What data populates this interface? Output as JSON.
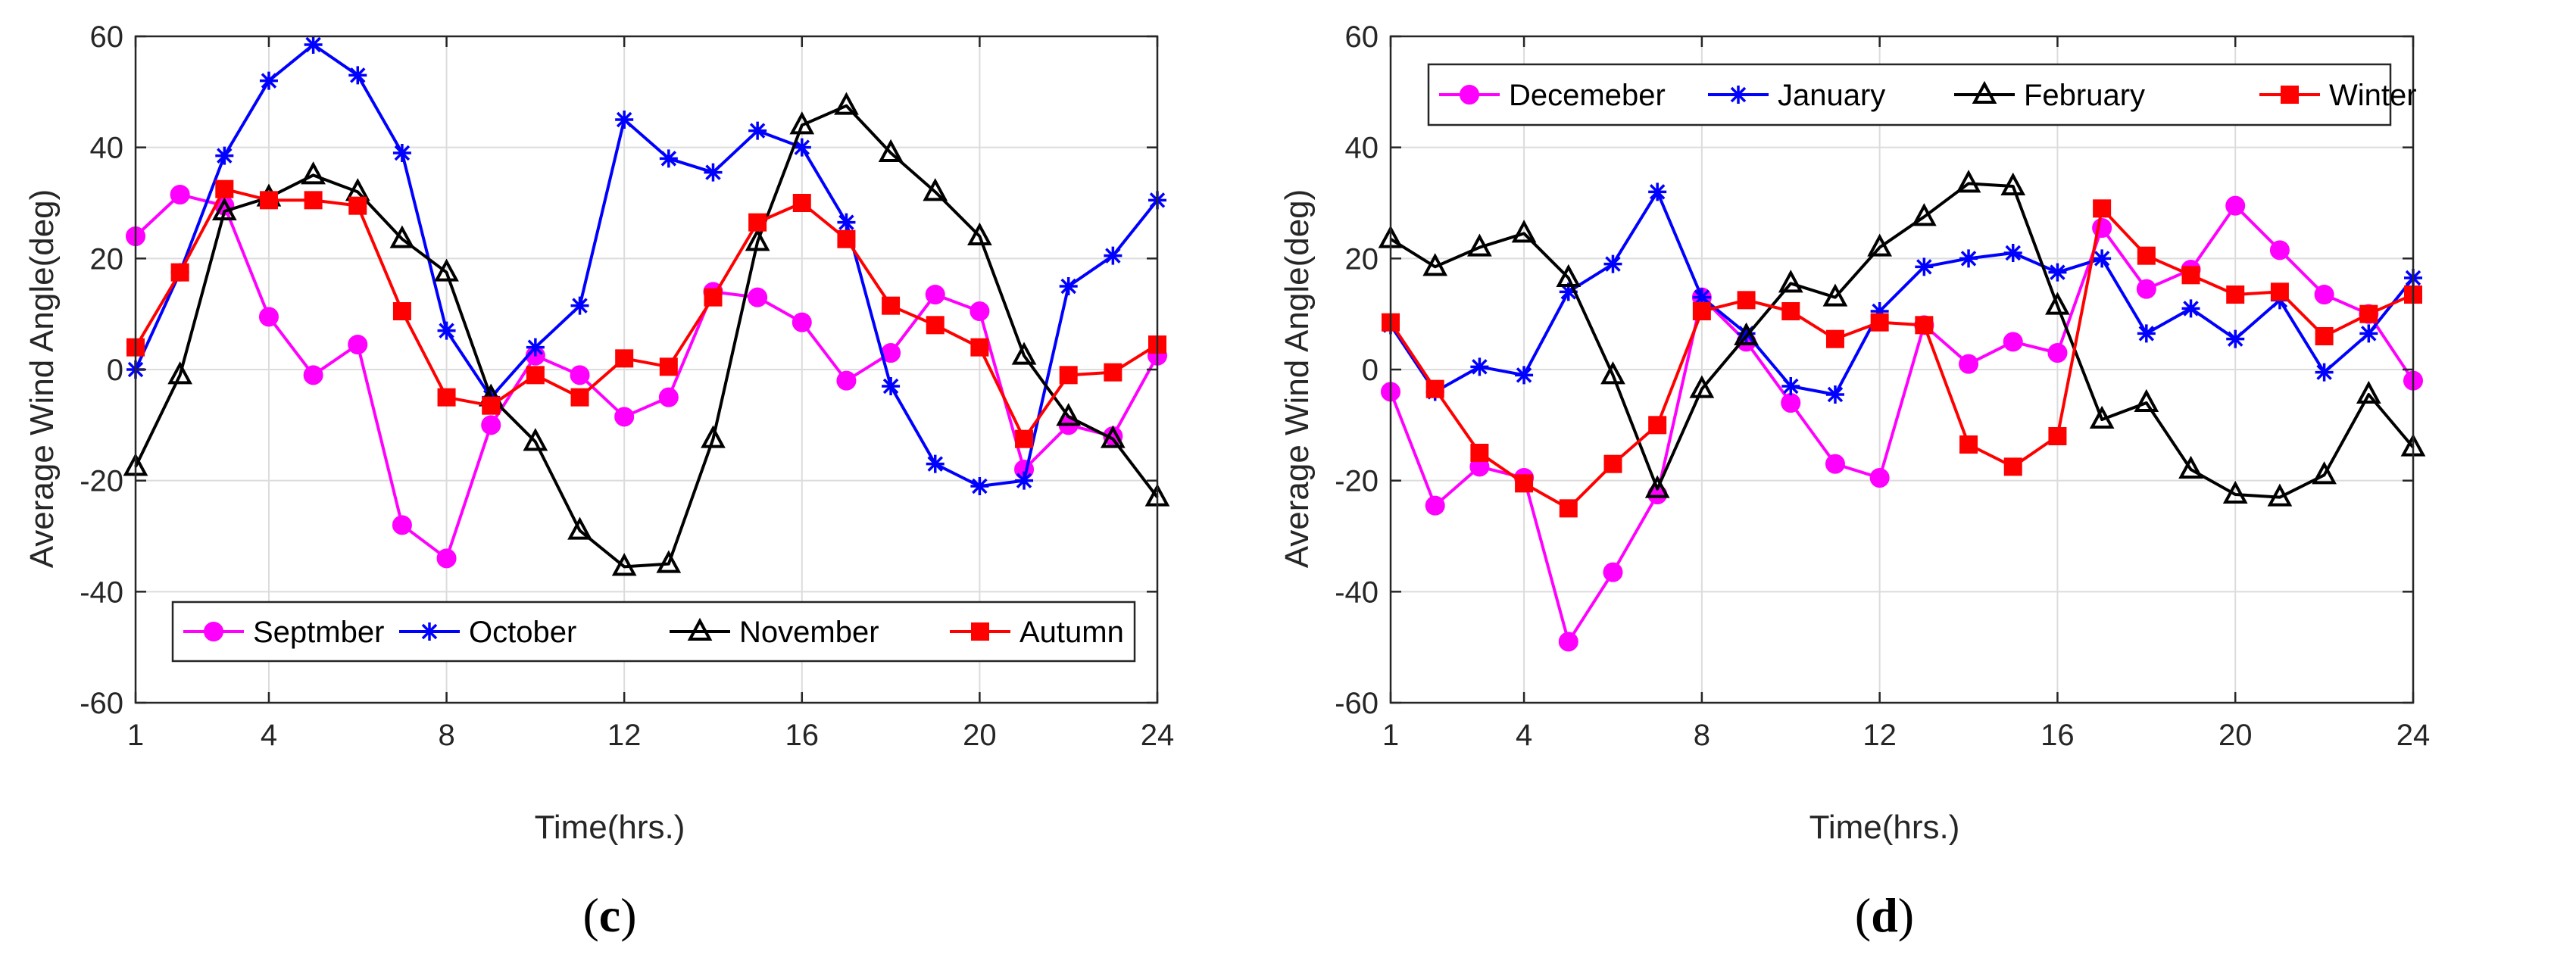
{
  "chart_data": [
    {
      "type": "line",
      "panel_label": "c",
      "xlabel": "Time(hrs.)",
      "ylabel": "Average Wind Angle(deg)",
      "xlim": [
        1,
        24
      ],
      "ylim": [
        -60,
        60
      ],
      "xticks": [
        1,
        4,
        8,
        12,
        16,
        20,
        24
      ],
      "yticks": [
        -60,
        -40,
        -20,
        0,
        20,
        40,
        60
      ],
      "grid": true,
      "legend_position": "bottom",
      "x": [
        1,
        2,
        3,
        4,
        5,
        6,
        7,
        8,
        9,
        10,
        11,
        12,
        13,
        14,
        15,
        16,
        17,
        18,
        19,
        20,
        21,
        22,
        23,
        24
      ],
      "series": [
        {
          "name": "Septmber",
          "color": "#ff00ff",
          "marker": "circle",
          "values": [
            24,
            31.5,
            29.5,
            9.5,
            -1,
            4.5,
            -28,
            -34,
            -10,
            2.5,
            -1,
            -8.5,
            -5,
            14,
            13,
            8.5,
            -2,
            3,
            13.5,
            10.5,
            -18,
            -10,
            -12,
            2.5
          ]
        },
        {
          "name": "October",
          "color": "#0000ff",
          "marker": "star",
          "values": [
            0,
            17.5,
            38.5,
            52,
            58.5,
            53,
            39,
            7,
            -5,
            4,
            11.5,
            45,
            38,
            35.5,
            43,
            40,
            26.5,
            -3,
            -17,
            -21,
            -20,
            15,
            20.5,
            30.5
          ]
        },
        {
          "name": "November",
          "color": "#000000",
          "marker": "triangle",
          "values": [
            -17.5,
            -1,
            28.5,
            31,
            35,
            32,
            23.5,
            17.5,
            -5,
            -13,
            -29,
            -35.5,
            -35,
            -12.5,
            23,
            44,
            47.5,
            39,
            32,
            24,
            2.5,
            -8.5,
            -12.5,
            -23
          ]
        },
        {
          "name": "Autumn",
          "color": "#ff0000",
          "marker": "square",
          "values": [
            4,
            17.5,
            32.5,
            30.5,
            30.5,
            29.5,
            10.5,
            -5,
            -6.5,
            -1,
            -5,
            2,
            0.5,
            13,
            26.5,
            30,
            23.5,
            11.5,
            8,
            4,
            -12.5,
            -1,
            -0.5,
            4.5
          ]
        }
      ]
    },
    {
      "type": "line",
      "panel_label": "d",
      "xlabel": "Time(hrs.)",
      "ylabel": "Average Wind Angle(deg)",
      "xlim": [
        1,
        24
      ],
      "ylim": [
        -60,
        60
      ],
      "xticks": [
        1,
        4,
        8,
        12,
        16,
        20,
        24
      ],
      "yticks": [
        -60,
        -40,
        -20,
        0,
        20,
        40,
        60
      ],
      "grid": true,
      "legend_position": "top",
      "x": [
        1,
        2,
        3,
        4,
        5,
        6,
        7,
        8,
        9,
        10,
        11,
        12,
        13,
        14,
        15,
        16,
        17,
        18,
        19,
        20,
        21,
        22,
        23,
        24
      ],
      "series": [
        {
          "name": "Decemeber",
          "color": "#ff00ff",
          "marker": "circle",
          "values": [
            -4,
            -24.5,
            -17.5,
            -19.5,
            -49,
            -36.5,
            -22.5,
            13,
            5,
            -6,
            -17,
            -19.5,
            8,
            1,
            5,
            3,
            25.5,
            14.5,
            18,
            29.5,
            21.5,
            13.5,
            10,
            -2
          ]
        },
        {
          "name": "January",
          "color": "#0000ff",
          "marker": "star",
          "values": [
            8,
            -4,
            0.5,
            -1,
            14,
            19,
            32,
            13,
            6.5,
            -3,
            -4.5,
            10.5,
            18.5,
            20,
            21,
            17.5,
            20,
            6.5,
            11,
            5.5,
            12.5,
            -0.5,
            6.5,
            16.5
          ]
        },
        {
          "name": "February",
          "color": "#000000",
          "marker": "triangle",
          "values": [
            23.5,
            18.5,
            22,
            24.5,
            16.5,
            -1,
            -21.5,
            -3.5,
            6,
            15.5,
            13,
            22,
            27.5,
            33.5,
            33,
            11.5,
            -9,
            -6,
            -18,
            -22.5,
            -23,
            -19,
            -4.5,
            -14
          ]
        },
        {
          "name": "Winter",
          "color": "#ff0000",
          "marker": "square",
          "values": [
            8.5,
            -3.5,
            -15,
            -20.5,
            -25,
            -17,
            -10,
            10.5,
            12.5,
            10.5,
            5.5,
            8.5,
            8,
            -13.5,
            -17.5,
            -12,
            29,
            20.5,
            17,
            13.5,
            14,
            6,
            10,
            13.5
          ]
        }
      ]
    }
  ]
}
